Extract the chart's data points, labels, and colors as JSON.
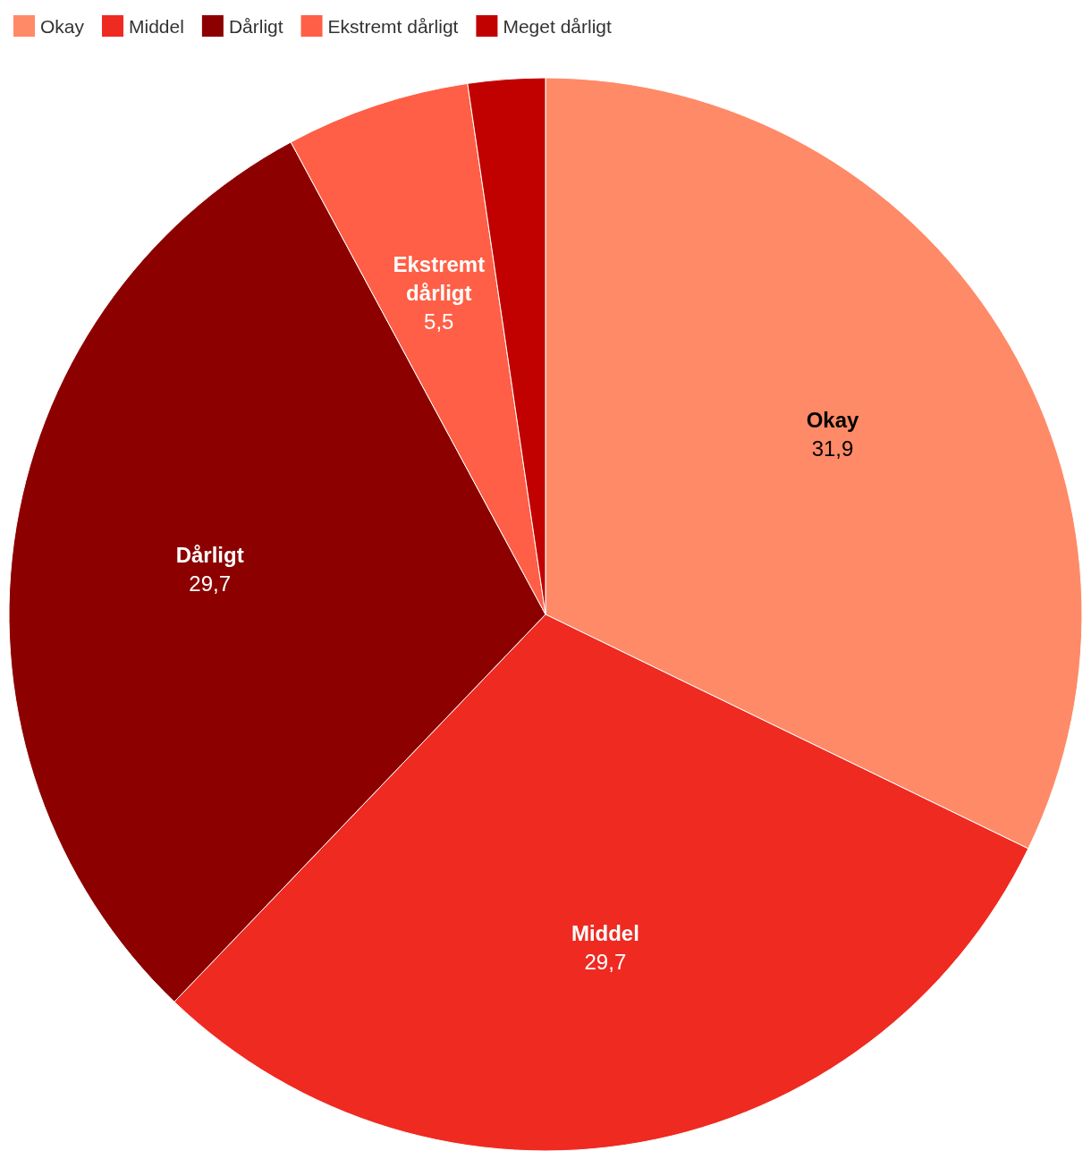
{
  "chart_data": {
    "type": "pie",
    "categories": [
      "Okay",
      "Middel",
      "Dårligt",
      "Ekstremt dårligt",
      "Meget dårligt"
    ],
    "values": [
      31.9,
      29.7,
      29.7,
      5.5,
      2.3
    ],
    "value_labels": [
      "31,9",
      "29,7",
      "29,7",
      "5,5",
      null
    ],
    "colors": [
      "#ff8a68",
      "#ef2a21",
      "#8c0000",
      "#ff5f46",
      "#c10000"
    ],
    "legend": "top left"
  }
}
